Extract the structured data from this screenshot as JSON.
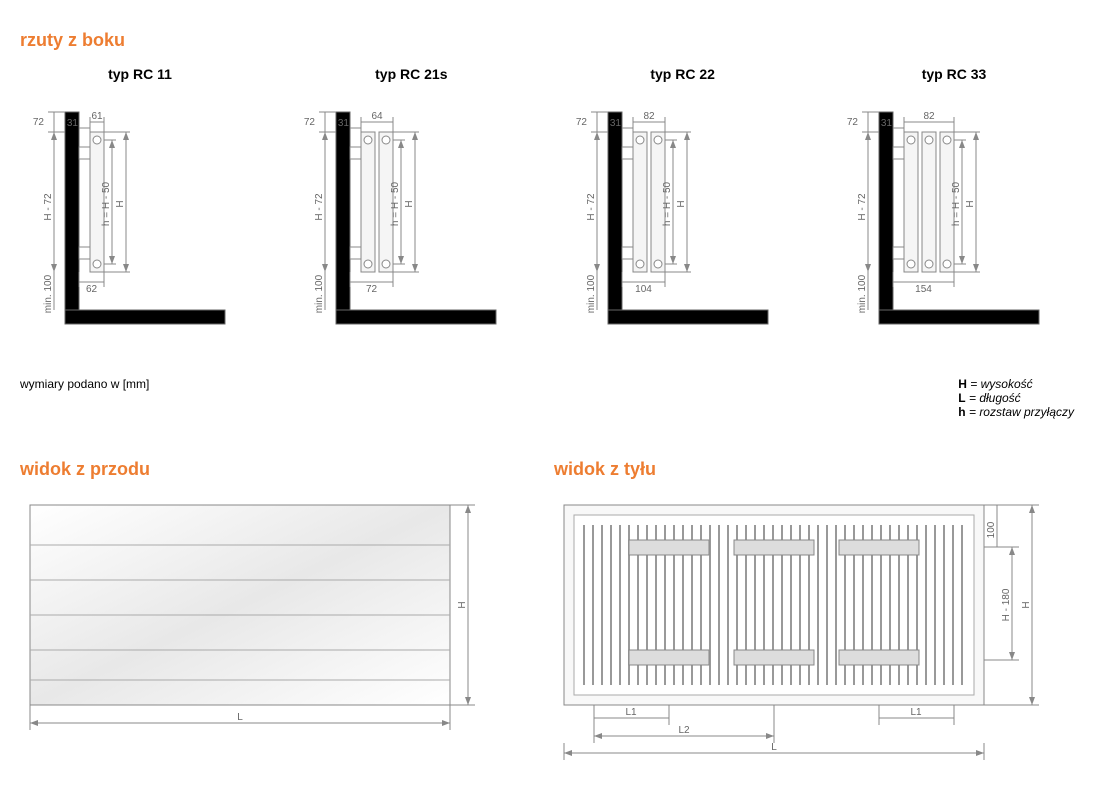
{
  "titles": {
    "side": "rzuty z boku",
    "front": "widok z przodu",
    "back": "widok z tyłu"
  },
  "footer_note": "wymiary podano w [mm]",
  "legend": {
    "H": "wysokość",
    "L": "długość",
    "h": "rozstaw przyłączy"
  },
  "colors": {
    "accent": "#ed7d31",
    "line": "#666666",
    "dim_line": "#888888",
    "hatch": "#555555",
    "body_outline": "#888888",
    "body_fill": "#f5f5f5",
    "wall_fill": "#ffffff"
  },
  "dims_common": {
    "top_offset": "31",
    "panel_to_wall": "72",
    "height_label": "H - 72",
    "h_label": "h = H - 50",
    "H_label": "H",
    "min_bottom": "min. 100"
  },
  "types": [
    {
      "name": "typ RC 11",
      "top_width": "61",
      "bottom_width": "62",
      "panels": 1
    },
    {
      "name": "typ RC 21s",
      "top_width": "64",
      "bottom_width": "72",
      "panels": 2
    },
    {
      "name": "typ RC 22",
      "top_width": "82",
      "bottom_width": "104",
      "panels": 2
    },
    {
      "name": "typ RC 33",
      "top_width": "82",
      "bottom_width": "154",
      "panels": 3
    }
  ],
  "front": {
    "L": "L",
    "H": "H"
  },
  "back": {
    "L": "L",
    "L1": "L1",
    "L2": "L2",
    "H": "H",
    "H180": "H - 180",
    "top100": "100"
  }
}
